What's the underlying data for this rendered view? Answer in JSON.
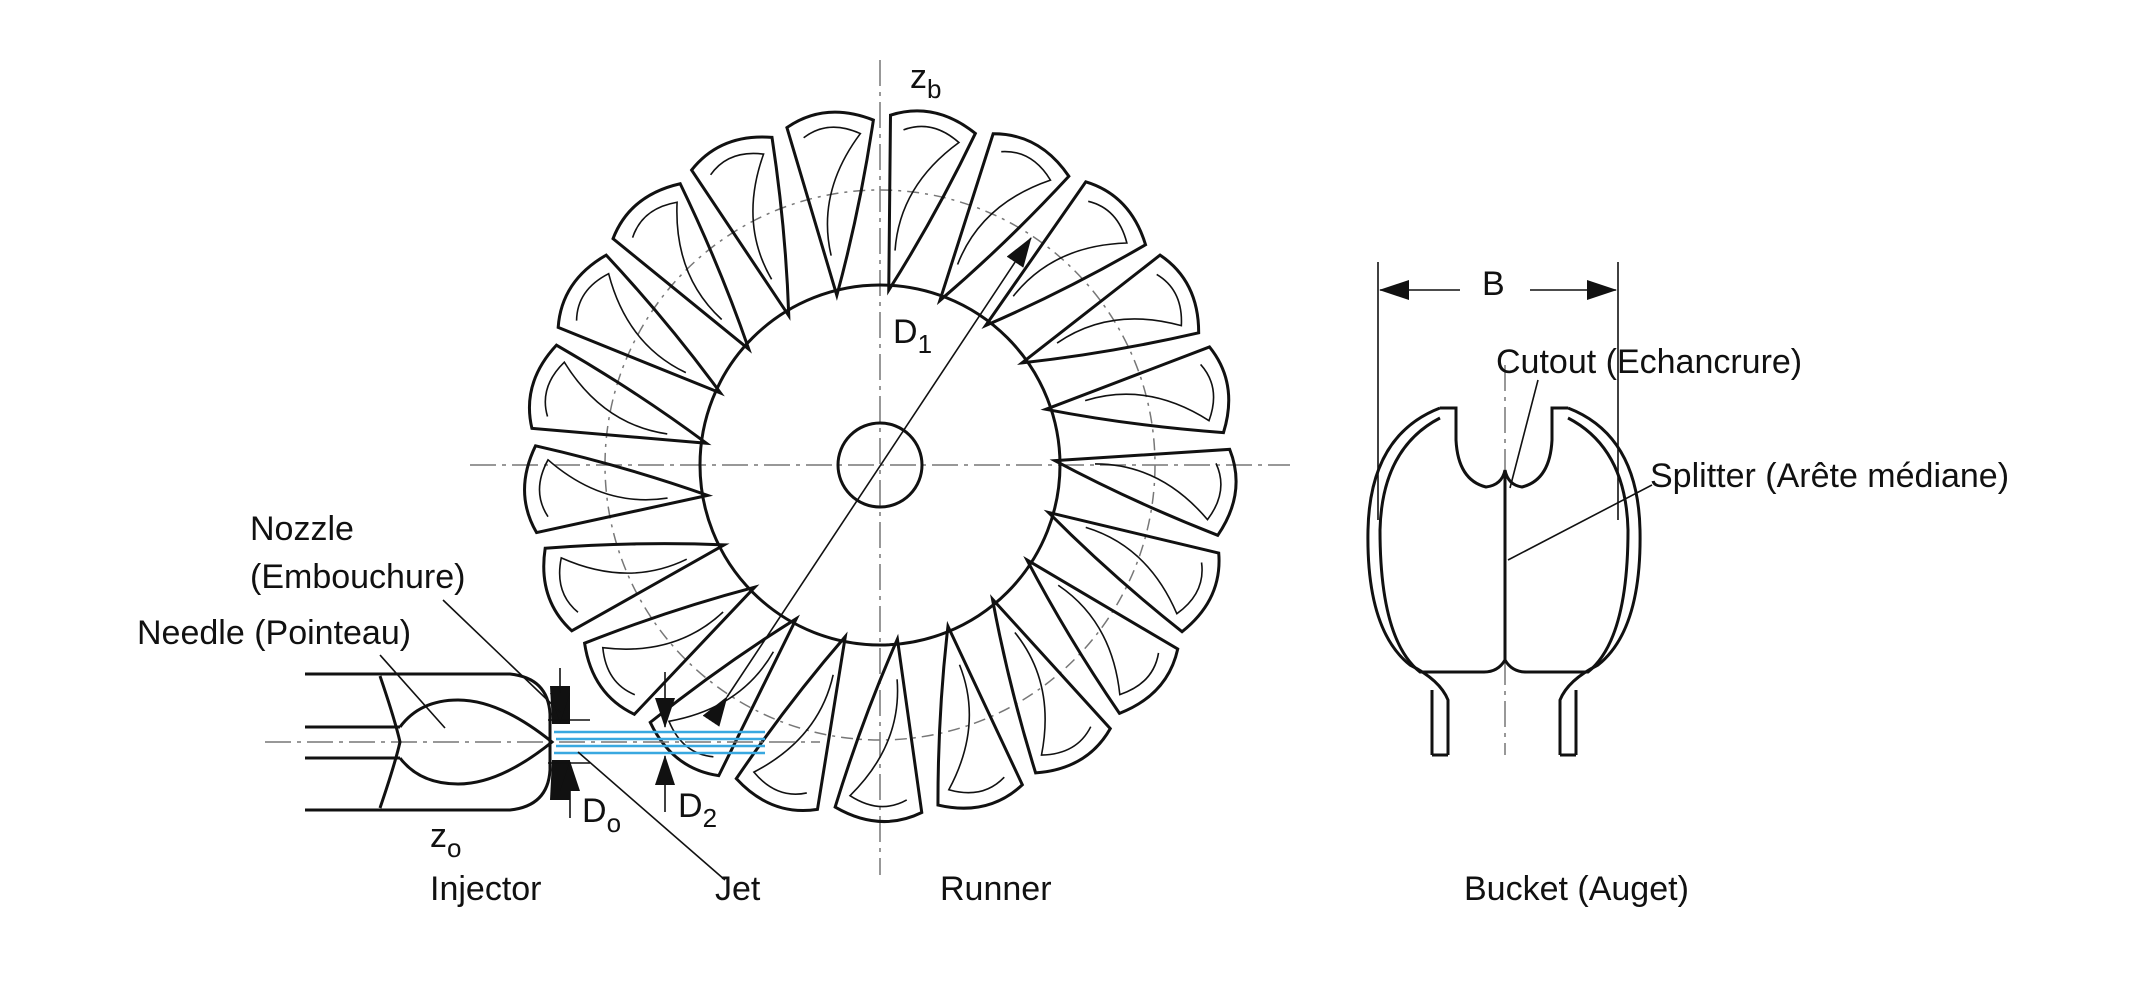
{
  "labels": {
    "zb": "z",
    "zb_sub": "b",
    "d1": "D",
    "d1_sub": "1",
    "nozzle_line1": "Nozzle",
    "nozzle_line2": "(Embouchure)",
    "needle": "Needle (Pointeau)",
    "d0": "D",
    "d0_sub": "o",
    "d2": "D",
    "d2_sub": "2",
    "zo": "z",
    "zo_sub": "o",
    "injector": "Injector",
    "jet": "Jet",
    "runner": "Runner",
    "b": "B",
    "cutout": "Cutout (Echancrure)",
    "splitter": "Splitter (Arête médiane)",
    "bucket": "Bucket (Auget)"
  },
  "runner": {
    "bucket_count": 21
  },
  "colors": {
    "line": "#111111",
    "jet": "#39a8e0",
    "centerline": "#777777"
  }
}
